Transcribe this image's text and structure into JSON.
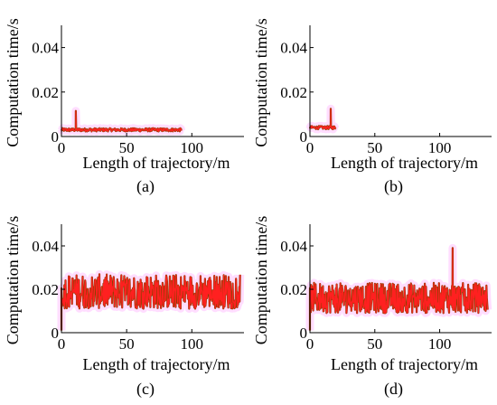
{
  "chart_data": [
    {
      "type": "line",
      "panel_label": "(a)",
      "xlabel": "Length of trajectory/m",
      "ylabel": "Computation time/s",
      "xlim": [
        0,
        140
      ],
      "ylim": [
        0,
        0.05
      ],
      "xticks": [
        0,
        50,
        100
      ],
      "yticks": [
        0,
        0.02,
        0.04
      ],
      "ytick_labels": [
        "0",
        "0.02",
        "0.04"
      ],
      "x_end": 92,
      "typical_value": 0.003,
      "spike": {
        "x": 11,
        "y": 0.0115
      },
      "series_colors": {
        "main": "#ff2020",
        "edge": "#8b4000",
        "shadow": "#ff66ff"
      }
    },
    {
      "type": "line",
      "panel_label": "(b)",
      "xlabel": "Length of trajectory/m",
      "ylabel": "Computation time/s",
      "xlim": [
        0,
        140
      ],
      "ylim": [
        0,
        0.05
      ],
      "xticks": [
        0,
        50,
        100
      ],
      "yticks": [
        0,
        0.02,
        0.04
      ],
      "ytick_labels": [
        "0",
        "0.02",
        "0.04"
      ],
      "x_end": 20,
      "typical_value": 0.004,
      "spike": {
        "x": 16,
        "y": 0.0125
      },
      "series_colors": {
        "main": "#ff2020",
        "edge": "#8b4000",
        "shadow": "#ff66ff"
      }
    },
    {
      "type": "line",
      "panel_label": "(c)",
      "xlabel": "Length of trajectory/m",
      "ylabel": "Computation time/s",
      "xlim": [
        0,
        140
      ],
      "ylim": [
        0,
        0.05
      ],
      "xticks": [
        0,
        50,
        100
      ],
      "yticks": [
        0,
        0.02,
        0.04
      ],
      "ytick_labels": [
        "0",
        "0.02",
        "0.04"
      ],
      "x_end": 137,
      "typical_value": 0.018,
      "band": [
        0.011,
        0.027
      ],
      "series_colors": {
        "main": "#ff2020",
        "edge": "#8b4000",
        "shadow": "#ff66ff"
      }
    },
    {
      "type": "line",
      "panel_label": "(d)",
      "xlabel": "Length of trajectory/m",
      "ylabel": "Computation time/s",
      "xlim": [
        0,
        140
      ],
      "ylim": [
        0,
        0.05
      ],
      "xticks": [
        0,
        50,
        100
      ],
      "yticks": [
        0,
        0.02,
        0.04
      ],
      "ytick_labels": [
        "0",
        "0.02",
        "0.04"
      ],
      "x_end": 137,
      "typical_value": 0.015,
      "band": [
        0.009,
        0.023
      ],
      "spike": {
        "x": 110,
        "y": 0.039
      },
      "series_colors": {
        "main": "#ff2020",
        "edge": "#8b4000",
        "shadow": "#ff66ff"
      }
    }
  ]
}
